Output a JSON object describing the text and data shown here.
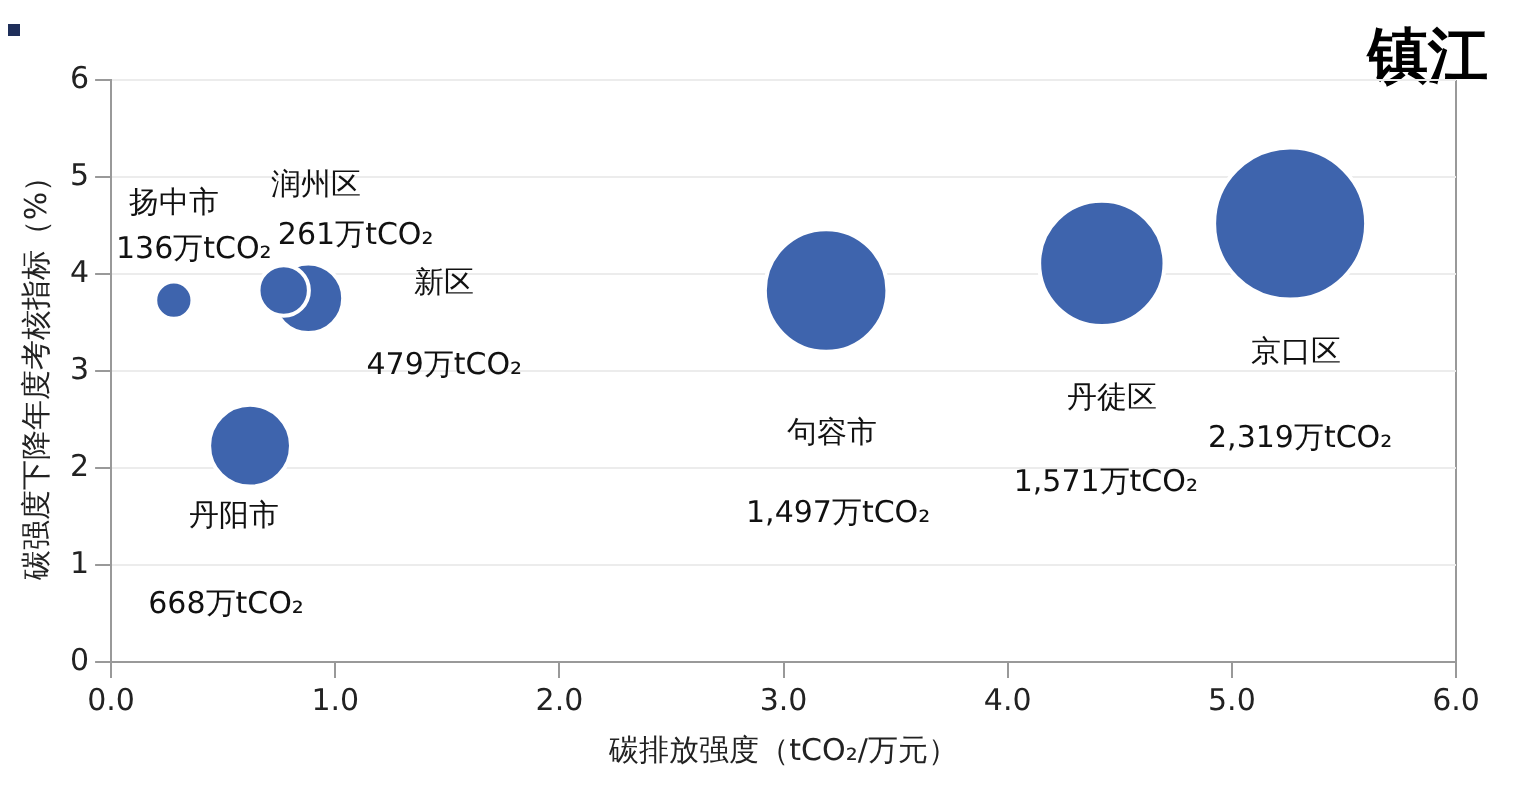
{
  "chart_data": {
    "type": "bubble",
    "title": "镇江",
    "xlabel": "碳排放强度（tCO₂/万元）",
    "ylabel": "碳强度下降年度考核指标（%）",
    "xlim": [
      0,
      6
    ],
    "xticks": [
      {
        "value": 0,
        "label": "0.0"
      },
      {
        "value": 1,
        "label": "1.0"
      },
      {
        "value": 2,
        "label": "2.0"
      },
      {
        "value": 3,
        "label": "3.0"
      },
      {
        "value": 4,
        "label": "4.0"
      },
      {
        "value": 5,
        "label": "5.0"
      },
      {
        "value": 6,
        "label": "6.0"
      }
    ],
    "ylim": [
      0,
      6
    ],
    "yticks": [
      0,
      1,
      2,
      3,
      4,
      5,
      6
    ],
    "grid": "y",
    "legend": false,
    "annotations": [
      "136万tCO₂",
      "261万tCO₂",
      "479万tCO₂",
      "668万tCO₂",
      "1,497万tCO₂",
      "1,571万tCO₂",
      "2,319万tCO₂"
    ],
    "series": [
      {
        "name": "扬中市",
        "color": "#3e64ad",
        "x": [
          0.28
        ],
        "values": [
          3.73
        ],
        "sizes": [
          0.06
        ]
      },
      {
        "name": "润州区",
        "color": "#3e64ad",
        "x": [
          0.77
        ],
        "values": [
          3.83
        ],
        "sizes": [
          0.11
        ]
      },
      {
        "name": "新区",
        "color": "#3e64ad",
        "x": [
          0.88
        ],
        "values": [
          3.75
        ],
        "sizes": [
          0.21
        ]
      },
      {
        "name": "丹阳市",
        "color": "#3e64ad",
        "x": [
          0.62
        ],
        "values": [
          2.23
        ],
        "sizes": [
          0.29
        ]
      },
      {
        "name": "句容市",
        "color": "#3e64ad",
        "x": [
          3.19
        ],
        "values": [
          3.83
        ],
        "sizes": [
          0.65
        ]
      },
      {
        "name": "丹徒区",
        "color": "#3e64ad",
        "x": [
          4.42
        ],
        "values": [
          4.11
        ],
        "sizes": [
          0.68
        ]
      },
      {
        "name": "京口区",
        "color": "#3e64ad",
        "x": [
          5.26
        ],
        "values": [
          4.52
        ],
        "sizes": [
          1
        ]
      }
    ]
  }
}
